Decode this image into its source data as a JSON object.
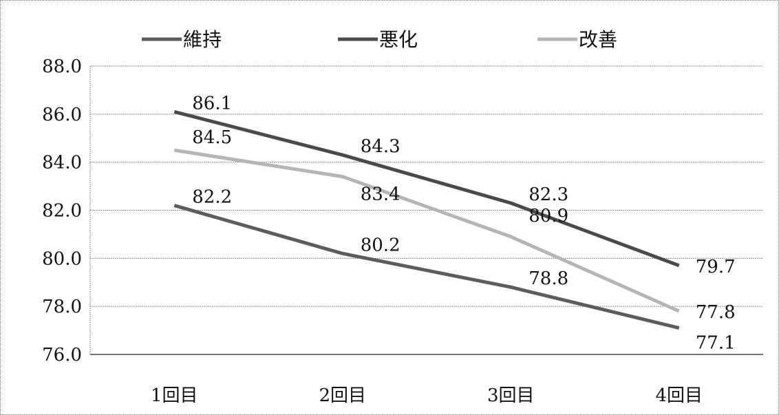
{
  "chart_data": {
    "type": "line",
    "title": "",
    "xlabel": "",
    "ylabel": "",
    "categories": [
      "1回目",
      "2回目",
      "3回目",
      "4回目"
    ],
    "ylim": [
      76.0,
      88.0
    ],
    "yticks": [
      "76.0",
      "78.0",
      "80.0",
      "82.0",
      "84.0",
      "86.0",
      "88.0"
    ],
    "grid": true,
    "legend_position": "top",
    "series": [
      {
        "name": "維持",
        "values": [
          82.2,
          80.2,
          78.8,
          77.1
        ],
        "labels": [
          "82.2",
          "80.2",
          "78.8",
          "77.1"
        ],
        "color": "#5c5c5c"
      },
      {
        "name": "悪化",
        "values": [
          86.1,
          84.3,
          82.3,
          79.7
        ],
        "labels": [
          "86.1",
          "84.3",
          "82.3",
          "79.7"
        ],
        "color": "#4a4a4a"
      },
      {
        "name": "改善",
        "values": [
          84.5,
          83.4,
          80.9,
          77.8
        ],
        "labels": [
          "84.5",
          "83.4",
          "80.9",
          "77.8"
        ],
        "color": "#b5b5b5"
      }
    ]
  }
}
